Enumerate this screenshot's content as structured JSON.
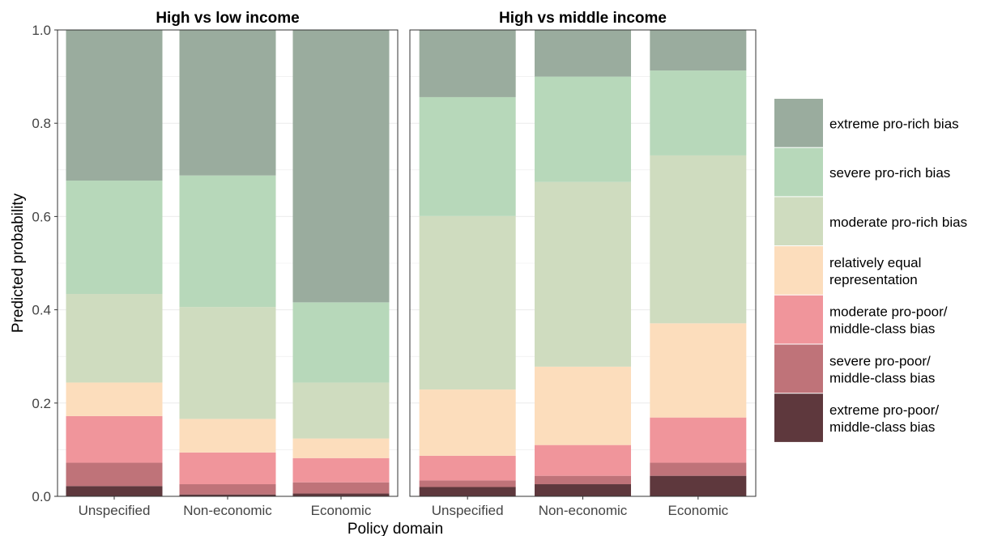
{
  "chart_data": {
    "type": "bar",
    "stacked": true,
    "ylabel": "Predicted probability",
    "xlabel": "Policy domain",
    "ylim": [
      0,
      1
    ],
    "yticks": [
      "0.0",
      "0.2",
      "0.4",
      "0.6",
      "0.8",
      "1.0"
    ],
    "categories": [
      "Unspecified",
      "Non-economic",
      "Economic"
    ],
    "legend_position": "right",
    "grid": true,
    "series": [
      {
        "name": "extreme pro-poor/\nmiddle-class bias",
        "color": "#5e383d"
      },
      {
        "name": "severe pro-poor/\nmiddle-class bias",
        "color": "#bf7379"
      },
      {
        "name": "moderate pro-poor/\nmiddle-class bias",
        "color": "#f0959b"
      },
      {
        "name": "relatively equal\nrepresentation",
        "color": "#fcddbc"
      },
      {
        "name": "moderate pro-rich bias",
        "color": "#cfdcbf"
      },
      {
        "name": "severe pro-rich bias",
        "color": "#b7d8ba"
      },
      {
        "name": "extreme pro-rich bias",
        "color": "#9aac9e"
      }
    ],
    "panels": [
      {
        "title": "High vs low income",
        "values": [
          [
            0.022,
            0.05,
            0.1,
            0.072,
            0.19,
            0.243,
            0.323
          ],
          [
            0.004,
            0.022,
            0.068,
            0.072,
            0.24,
            0.282,
            0.312
          ],
          [
            0.006,
            0.024,
            0.052,
            0.042,
            0.12,
            0.172,
            0.584
          ]
        ]
      },
      {
        "title": "High vs middle income",
        "values": [
          [
            0.02,
            0.014,
            0.053,
            0.142,
            0.372,
            0.255,
            0.144
          ],
          [
            0.026,
            0.018,
            0.066,
            0.168,
            0.396,
            0.226,
            0.1
          ],
          [
            0.044,
            0.028,
            0.097,
            0.202,
            0.36,
            0.182,
            0.087
          ]
        ]
      }
    ]
  }
}
